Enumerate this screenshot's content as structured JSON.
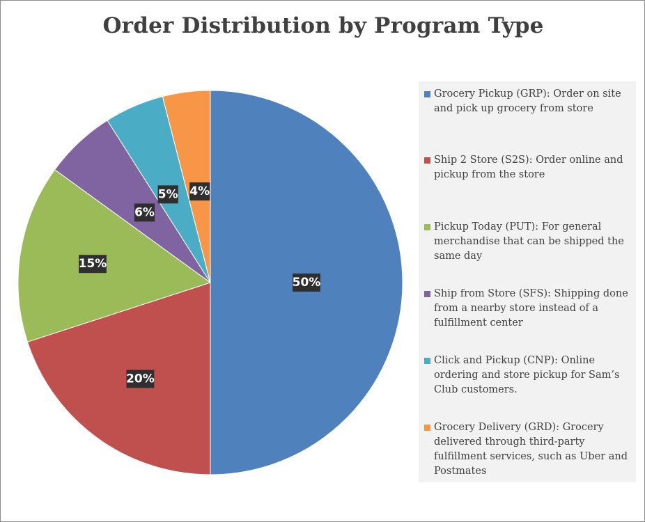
{
  "chart_data": {
    "type": "pie",
    "title": "Order Distribution by Program Type",
    "legend_position": "right",
    "slices": [
      {
        "name": "Grocery Pickup (GRP): Order on site and pick up grocery from store",
        "value": 50,
        "label": "50%",
        "color": "#4f81bd"
      },
      {
        "name": "Ship 2 Store (S2S): Order online and pickup from the store",
        "value": 20,
        "label": "20%",
        "color": "#c0504d"
      },
      {
        "name": "Pickup Today (PUT): For general merchandise that can be shipped the same day",
        "value": 15,
        "label": "15%",
        "color": "#9bbb59"
      },
      {
        "name": "Ship from Store (SFS): Shipping done from a nearby store instead of a fulfillment center",
        "value": 6,
        "label": "6%",
        "color": "#8064a2"
      },
      {
        "name": "Click and Pickup (CNP): Online ordering and store pickup for Sam’s Club customers.",
        "value": 5,
        "label": "5%",
        "color": "#4bacc6"
      },
      {
        "name": "Grocery Delivery (GRD): Grocery delivered through third-party fulfillment services, such as Uber and Postmates",
        "value": 4,
        "label": "4%",
        "color": "#f79646"
      }
    ]
  }
}
